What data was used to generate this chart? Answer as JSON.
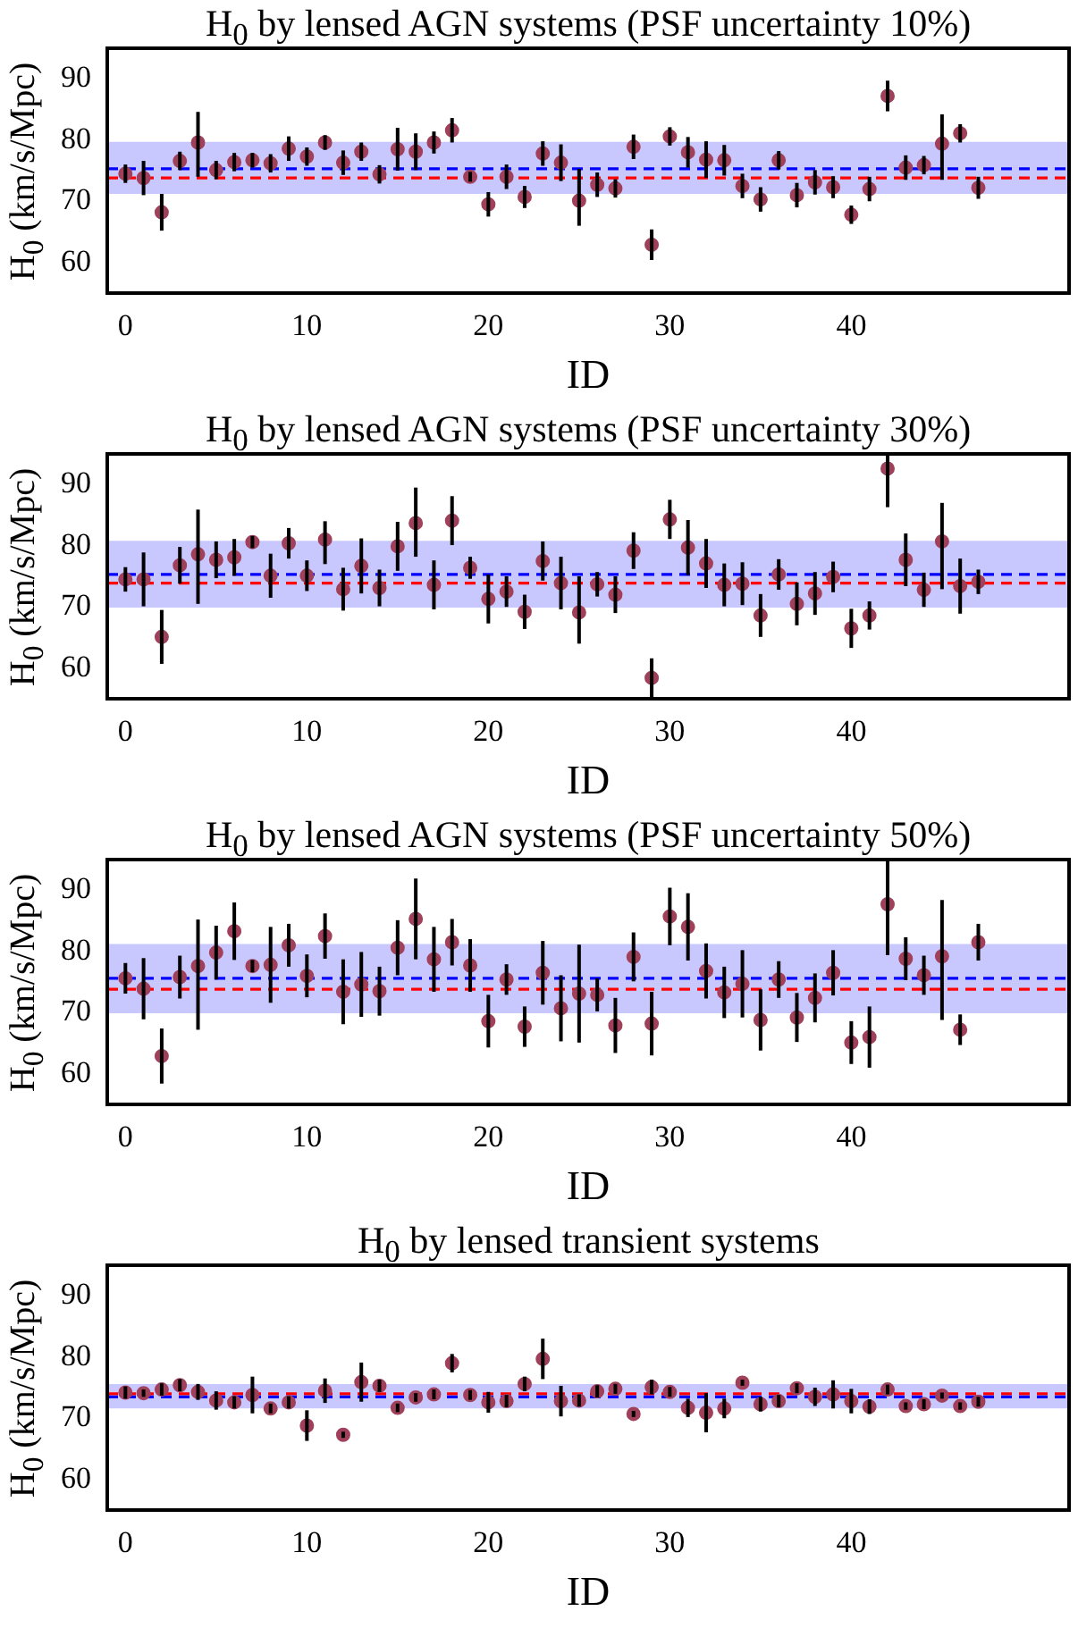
{
  "chart_data": [
    {
      "type": "scatter",
      "title": "H$_{0}$ by lensed AGN systems (PSF uncertainty 10%)",
      "xlabel": "ID",
      "ylabel": "H$_{0}$ (km/s/Mpc)",
      "marker": "circle",
      "color": "#a0405a",
      "x": [
        0,
        1,
        2,
        3,
        4,
        5,
        6,
        7,
        8,
        9,
        10,
        11,
        12,
        13,
        14,
        15,
        16,
        17,
        18,
        19,
        20,
        21,
        22,
        23,
        24,
        25,
        26,
        27,
        28,
        29,
        30,
        31,
        32,
        33,
        34,
        35,
        36,
        37,
        38,
        39,
        40,
        41,
        42,
        43,
        44,
        45,
        46,
        47
      ],
      "values": [
        74.5,
        73.8,
        68.2,
        76.6,
        79.6,
        75.1,
        76.4,
        76.7,
        76.2,
        78.6,
        77.3,
        79.6,
        76.3,
        78.1,
        74.4,
        78.5,
        78.1,
        79.6,
        81.6,
        74.0,
        69.5,
        74.0,
        70.7,
        77.8,
        76.3,
        70.1,
        72.7,
        72.1,
        78.9,
        62.9,
        80.6,
        78.0,
        76.8,
        76.7,
        72.5,
        70.3,
        76.7,
        71.0,
        73.1,
        72.3,
        67.8,
        72.0,
        87.2,
        75.5,
        75.9,
        79.4,
        81.1,
        72.2
      ],
      "errors": [
        1.5,
        2.8,
        3,
        1.5,
        [
          74.0,
          84.6
        ],
        1.5,
        1.5,
        1.2,
        1.5,
        2,
        1.5,
        1.2,
        2,
        1.5,
        1.5,
        3.5,
        3,
        1.8,
        2,
        0.8,
        2,
        2,
        1.8,
        2,
        3,
        [
          66.0,
          75.3
        ],
        2,
        1.5,
        2,
        2.5,
        1.5,
        2.5,
        3,
        2.5,
        2,
        2,
        1.5,
        2,
        2,
        1.8,
        1.5,
        2,
        2.5,
        2,
        1.5,
        [
          73.5,
          84.2
        ],
        1.5,
        1.8
      ],
      "xlim": [
        -1,
        52
      ],
      "xticks": [
        0,
        10,
        20,
        30,
        40
      ],
      "ylim": [
        55,
        95
      ],
      "yticks": [
        60,
        70,
        80,
        90
      ],
      "bands": [
        {
          "axis": "y",
          "from": 71.2,
          "to": 79.7,
          "color": "#c8c8ff"
        }
      ],
      "ref_lines": [
        {
          "axis": "y",
          "value": 75.3,
          "color": "#0000ff",
          "line_style": "dashed"
        },
        {
          "axis": "y",
          "value": 73.8,
          "color": "#ff0000",
          "line_style": "dashed"
        }
      ]
    },
    {
      "type": "scatter",
      "title": "H$_{0}$ by lensed AGN systems (PSF uncertainty 30%)",
      "xlabel": "ID",
      "ylabel": "H$_{0}$ (km/s/Mpc)",
      "marker": "circle",
      "color": "#a0405a",
      "x": [
        0,
        1,
        2,
        3,
        4,
        5,
        6,
        7,
        8,
        9,
        10,
        11,
        12,
        13,
        14,
        15,
        16,
        17,
        18,
        19,
        20,
        21,
        22,
        23,
        24,
        25,
        26,
        27,
        28,
        29,
        30,
        31,
        32,
        33,
        34,
        35,
        36,
        37,
        38,
        39,
        40,
        41,
        42,
        43,
        44,
        45,
        46,
        47
      ],
      "values": [
        74.5,
        74.5,
        65.1,
        76.8,
        78.6,
        77.7,
        78.1,
        80.6,
        75.1,
        80.4,
        75.1,
        81.0,
        72.9,
        76.7,
        73.1,
        79.9,
        83.7,
        73.6,
        84.1,
        76.4,
        71.3,
        72.5,
        69.2,
        77.5,
        73.9,
        69.1,
        73.7,
        72.0,
        79.2,
        58.4,
        84.3,
        79.7,
        77.1,
        73.6,
        73.8,
        68.6,
        75.3,
        70.5,
        72.2,
        74.9,
        66.5,
        68.6,
        92.6,
        77.7,
        72.8,
        80.7,
        73.4,
        74.1
      ],
      "errors": [
        2,
        4.4,
        4.4,
        3,
        [
          70.5,
          85.9
        ],
        3,
        3,
        1,
        3.6,
        2.5,
        2.5,
        [
          77.0,
          84.0
        ],
        3.5,
        4.5,
        3,
        4,
        [
          78.2,
          89.5
        ],
        4,
        4,
        1.8,
        4,
        2.5,
        2.8,
        3.2,
        4.3,
        [
          64.0,
          75.0
        ],
        2,
        3,
        3,
        3.2,
        3.2,
        4.5,
        4,
        3.5,
        3.5,
        3.5,
        2.5,
        3.5,
        3.5,
        2.5,
        3.2,
        2.3,
        [
          86.3,
          95.0
        ],
        4.3,
        2.8,
        [
          72.9,
          87.0
        ],
        4.5,
        2
      ],
      "xlim": [
        -1,
        52
      ],
      "xticks": [
        0,
        10,
        20,
        30,
        40
      ],
      "ylim": [
        55,
        95
      ],
      "yticks": [
        60,
        70,
        80,
        90
      ],
      "bands": [
        {
          "axis": "y",
          "from": 69.9,
          "to": 80.8,
          "color": "#c8c8ff"
        }
      ],
      "ref_lines": [
        {
          "axis": "y",
          "value": 75.3,
          "color": "#0000ff",
          "line_style": "dashed"
        },
        {
          "axis": "y",
          "value": 73.9,
          "color": "#ff0000",
          "line_style": "dashed"
        }
      ]
    },
    {
      "type": "scatter",
      "title": "H$_{0}$ by lensed AGN systems (PSF uncertainty 50%)",
      "xlabel": "ID",
      "ylabel": "H$_{0}$ (km/s/Mpc)",
      "marker": "circle",
      "color": "#a0405a",
      "x": [
        0,
        1,
        2,
        3,
        4,
        5,
        6,
        7,
        8,
        9,
        10,
        11,
        12,
        13,
        14,
        15,
        16,
        17,
        18,
        19,
        20,
        21,
        22,
        23,
        24,
        25,
        26,
        27,
        28,
        29,
        30,
        31,
        32,
        33,
        34,
        35,
        36,
        37,
        38,
        39,
        40,
        41,
        42,
        43,
        44,
        45,
        46,
        47
      ],
      "values": [
        75.6,
        73.9,
        62.9,
        75.8,
        77.6,
        79.8,
        83.3,
        77.6,
        77.8,
        81.0,
        76.0,
        82.5,
        73.4,
        74.6,
        73.5,
        80.6,
        85.3,
        78.7,
        81.5,
        77.7,
        68.6,
        75.4,
        67.7,
        76.5,
        70.7,
        73.1,
        72.9,
        67.9,
        79.1,
        68.2,
        85.7,
        84.0,
        76.8,
        73.3,
        74.7,
        68.8,
        75.4,
        69.2,
        72.4,
        76.5,
        65.1,
        66.0,
        87.7,
        78.8,
        76.1,
        79.2,
        67.2,
        81.5
      ],
      "errors": [
        2.5,
        5,
        4.5,
        3.5,
        [
          67.2,
          85.2
        ],
        4.4,
        4.7,
        1,
        6.2,
        3.5,
        3.5,
        3.7,
        5.3,
        5.3,
        4,
        4.5,
        6.6,
        5.3,
        3.8,
        4.3,
        4.3,
        2.5,
        3.3,
        5.2,
        5.4,
        8,
        2.7,
        4.5,
        4,
        5.2,
        4.7,
        5.5,
        4.5,
        4.2,
        5.5,
        5,
        3,
        4,
        4,
        3.7,
        3.5,
        5,
        [
          79.4,
          94.9
        ],
        3.5,
        3.2,
        [
          68.8,
          88.4
        ],
        2.5,
        3
      ],
      "xlim": [
        -1,
        52
      ],
      "xticks": [
        0,
        10,
        20,
        30,
        40
      ],
      "ylim": [
        55,
        95
      ],
      "yticks": [
        60,
        70,
        80,
        90
      ],
      "bands": [
        {
          "axis": "y",
          "from": 69.9,
          "to": 81.2,
          "color": "#c8c8ff"
        }
      ],
      "ref_lines": [
        {
          "axis": "y",
          "value": 75.6,
          "color": "#0000ff",
          "line_style": "dashed"
        },
        {
          "axis": "y",
          "value": 73.8,
          "color": "#ff0000",
          "line_style": "dashed"
        }
      ]
    },
    {
      "type": "scatter",
      "title": "H$_{0}$ by lensed transient systems",
      "xlabel": "ID",
      "ylabel": "H$_{0}$ (km/s/Mpc)",
      "marker": "circle",
      "color": "#a0405a",
      "x": [
        0,
        1,
        2,
        3,
        4,
        5,
        6,
        7,
        8,
        9,
        10,
        11,
        12,
        13,
        14,
        15,
        16,
        17,
        18,
        19,
        20,
        21,
        22,
        23,
        24,
        25,
        26,
        27,
        28,
        29,
        30,
        31,
        32,
        33,
        34,
        35,
        36,
        37,
        38,
        39,
        40,
        41,
        42,
        43,
        44,
        45,
        46,
        47
      ],
      "values": [
        74.2,
        74.1,
        74.7,
        75.4,
        74.3,
        72.9,
        72.6,
        73.8,
        71.6,
        72.6,
        68.8,
        74.5,
        67.3,
        75.9,
        75.3,
        71.7,
        73.4,
        73.9,
        79.0,
        73.8,
        72.6,
        72.8,
        75.6,
        79.7,
        72.8,
        72.9,
        74.4,
        74.8,
        70.7,
        75.1,
        74.3,
        71.7,
        70.9,
        71.6,
        75.8,
        72.3,
        72.8,
        74.9,
        73.5,
        73.9,
        72.8,
        71.9,
        74.7,
        72.0,
        72.3,
        73.7,
        72.0,
        72.7
      ],
      "errors": [
        1,
        0.6,
        1,
        1,
        1.3,
        1.5,
        1,
        3,
        0.8,
        1,
        2.5,
        2,
        0.5,
        3.2,
        1,
        0.7,
        0.7,
        0.8,
        1.5,
        0.8,
        1.7,
        1,
        1.2,
        3.3,
        2.5,
        1,
        1,
        0.8,
        0.5,
        1.2,
        0.8,
        1.5,
        3.2,
        1.6,
        0.5,
        1.2,
        1,
        0.8,
        1.5,
        2.3,
        2,
        1.2,
        0.8,
        0.6,
        0.8,
        0.5,
        0.6,
        0.8
      ],
      "xlim": [
        -1,
        52
      ],
      "xticks": [
        0,
        10,
        20,
        30,
        40
      ],
      "ylim": [
        55,
        95
      ],
      "yticks": [
        60,
        70,
        80,
        90
      ],
      "bands": [
        {
          "axis": "y",
          "from": 71.6,
          "to": 75.6,
          "color": "#c8c8ff"
        }
      ],
      "ref_lines": [
        {
          "axis": "y",
          "value": 74.0,
          "color": "#ff0000",
          "line_style": "dashed"
        },
        {
          "axis": "y",
          "value": 73.5,
          "color": "#0000ff",
          "line_style": "dashed"
        }
      ]
    }
  ]
}
